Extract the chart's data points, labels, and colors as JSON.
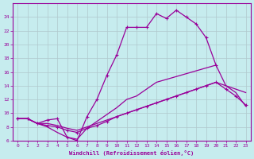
{
  "xlabel": "Windchill (Refroidissement éolien,°C)",
  "xlim": [
    -0.5,
    23.5
  ],
  "ylim": [
    6,
    26
  ],
  "xticks": [
    0,
    1,
    2,
    3,
    4,
    5,
    6,
    7,
    8,
    9,
    10,
    11,
    12,
    13,
    14,
    15,
    16,
    17,
    18,
    19,
    20,
    21,
    22,
    23
  ],
  "yticks": [
    6,
    8,
    10,
    12,
    14,
    16,
    18,
    20,
    22,
    24
  ],
  "bg_color": "#c6ecee",
  "line_color": "#990099",
  "grid_color": "#b0c8cc",
  "lines": [
    {
      "x": [
        0,
        1,
        2,
        3,
        4,
        5,
        6,
        7,
        8,
        9,
        10,
        11,
        12,
        13,
        14,
        15,
        16,
        17,
        18,
        19,
        20
      ],
      "y": [
        9.2,
        9.2,
        8.5,
        9.0,
        9.2,
        6.5,
        6.0,
        9.5,
        12.0,
        15.5,
        18.5,
        22.5,
        22.5,
        22.5,
        24.5,
        23.8,
        25.0,
        24.0,
        23.0,
        21.0,
        17.0
      ],
      "has_markers": true
    },
    {
      "x": [
        0,
        1,
        2,
        3,
        4,
        5,
        6,
        7,
        8,
        9,
        10,
        11,
        12,
        13,
        14,
        20,
        21,
        22,
        23
      ],
      "y": [
        9.2,
        9.2,
        8.5,
        8.0,
        7.2,
        6.5,
        6.2,
        7.8,
        8.8,
        9.8,
        10.8,
        12.0,
        12.5,
        13.5,
        14.5,
        17.0,
        14.0,
        13.0,
        11.0
      ],
      "has_markers": false
    },
    {
      "x": [
        0,
        1,
        2,
        3,
        4,
        5,
        6,
        7,
        8,
        9,
        10,
        11,
        12,
        13,
        14,
        15,
        16,
        17,
        18,
        19,
        20,
        21,
        22,
        23
      ],
      "y": [
        9.2,
        9.2,
        8.5,
        8.2,
        8.0,
        7.5,
        7.2,
        7.8,
        8.2,
        8.8,
        9.5,
        10.0,
        10.5,
        11.0,
        11.5,
        12.0,
        12.5,
        13.0,
        13.5,
        14.0,
        14.5,
        13.5,
        12.5,
        11.2
      ],
      "has_markers": true
    },
    {
      "x": [
        0,
        1,
        2,
        3,
        4,
        5,
        6,
        7,
        8,
        9,
        10,
        11,
        12,
        13,
        14,
        15,
        16,
        17,
        18,
        19,
        20,
        21,
        22,
        23
      ],
      "y": [
        9.2,
        9.2,
        8.5,
        8.5,
        8.2,
        7.8,
        7.5,
        8.0,
        8.5,
        9.0,
        9.5,
        10.0,
        10.5,
        11.0,
        11.5,
        12.0,
        12.5,
        13.0,
        13.5,
        14.0,
        14.5,
        14.0,
        13.5,
        13.0
      ],
      "has_markers": false
    }
  ]
}
